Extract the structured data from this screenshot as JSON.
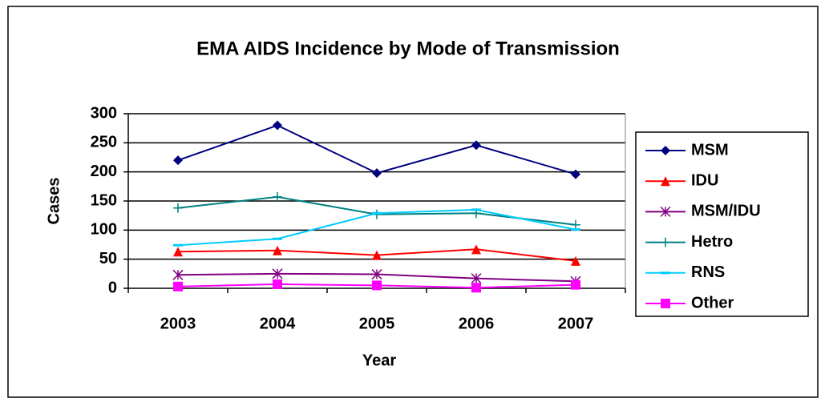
{
  "chart_data": {
    "type": "line",
    "title": "EMA AIDS Incidence by Mode of Transmission",
    "x_label": "Year",
    "y_label": "Cases",
    "categories": [
      "2003",
      "2004",
      "2005",
      "2006",
      "2007"
    ],
    "series": [
      {
        "name": "MSM",
        "color": "#000080",
        "marker": "diamond",
        "values": [
          220,
          280,
          198,
          246,
          196
        ]
      },
      {
        "name": "IDU",
        "color": "#ff0000",
        "marker": "triangle",
        "values": [
          63,
          65,
          57,
          67,
          47
        ]
      },
      {
        "name": "MSM/IDU",
        "color": "#800080",
        "marker": "star",
        "values": [
          23,
          25,
          24,
          17,
          12
        ]
      },
      {
        "name": "Hetro",
        "color": "#008080",
        "marker": "plus",
        "values": [
          138,
          157,
          127,
          129,
          109
        ]
      },
      {
        "name": "RNS",
        "color": "#00ccff",
        "marker": "dash",
        "values": [
          74,
          85,
          129,
          135,
          101
        ]
      },
      {
        "name": "Other",
        "color": "#ff00ff",
        "marker": "square",
        "values": [
          3,
          7,
          5,
          1,
          6
        ]
      }
    ],
    "ylim": [
      0,
      300
    ],
    "yticks": [
      0,
      50,
      100,
      150,
      200,
      250,
      300
    ],
    "grid": true,
    "legend": "right"
  }
}
